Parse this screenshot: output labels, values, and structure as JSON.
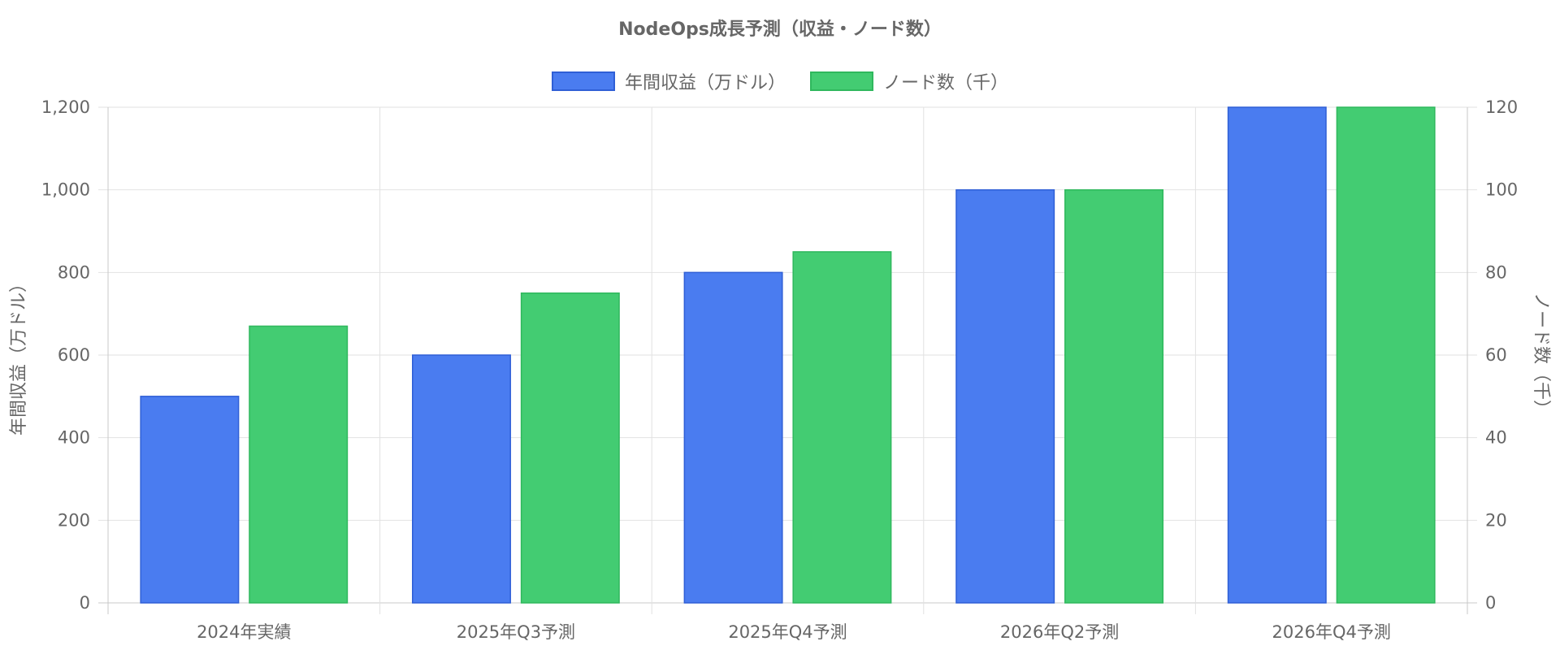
{
  "chart_data": {
    "type": "bar",
    "title": "NodeOps成長予測（収益・ノード数）",
    "categories": [
      "2024年実績",
      "2025年Q3予測",
      "2025年Q4予測",
      "2026年Q2予測",
      "2026年Q4予測"
    ],
    "series": [
      {
        "name": "年間収益（万ドル）",
        "axis": "left",
        "values": [
          500,
          600,
          800,
          1000,
          1200
        ],
        "fill": "#4a7cf0",
        "stroke": "#2f5fd6"
      },
      {
        "name": "ノード数（千）",
        "axis": "right",
        "values": [
          67,
          75,
          85,
          100,
          120
        ],
        "fill": "#43cc72",
        "stroke": "#2fb85d"
      }
    ],
    "y_left": {
      "label": "年間収益（万ドル）",
      "min": 0,
      "max": 1200,
      "step": 200,
      "ticks": [
        "0",
        "200",
        "400",
        "600",
        "800",
        "1,000",
        "1,200"
      ]
    },
    "y_right": {
      "label": "ノード数（千）",
      "min": 0,
      "max": 120,
      "step": 20,
      "ticks": [
        "0",
        "20",
        "40",
        "60",
        "80",
        "100",
        "120"
      ]
    },
    "legend_position": "top",
    "grid": true
  }
}
